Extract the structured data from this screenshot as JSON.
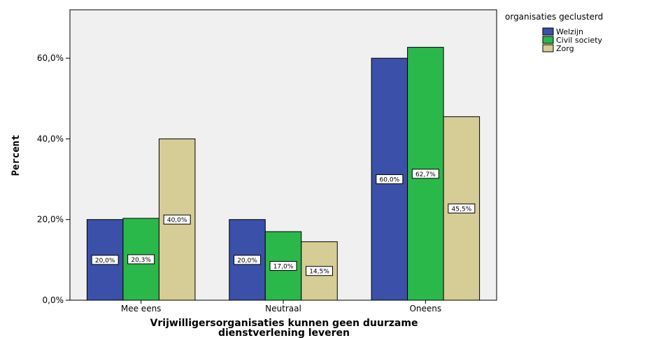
{
  "chart_data": {
    "type": "bar",
    "title": "",
    "xlabel": [
      "Vrijwilligersorganisaties kunnen geen duurzame",
      "dienstverlening leveren"
    ],
    "ylabel": "Percent",
    "categories": [
      "Mee eens",
      "Neutraal",
      "Oneens"
    ],
    "series": [
      {
        "name": "Welzijn",
        "color": "#3b50a8",
        "values": [
          20.0,
          20.0,
          60.0
        ],
        "labels": [
          "20,0%",
          "20,0%",
          "60,0%"
        ]
      },
      {
        "name": "Civil society",
        "color": "#2bb84a",
        "values": [
          20.3,
          17.0,
          62.7
        ],
        "labels": [
          "20,3%",
          "17,0%",
          "62,7%"
        ]
      },
      {
        "name": "Zorg",
        "color": "#d6cc95",
        "values": [
          40.0,
          14.5,
          45.5
        ],
        "labels": [
          "40,0%",
          "14,5%",
          "45,5%"
        ]
      }
    ],
    "ylim": [
      0,
      72
    ],
    "yticks": [
      0,
      20,
      40,
      60
    ],
    "ytick_labels": [
      "0,0%",
      "20,0%",
      "40,0%",
      "60,0%"
    ],
    "legend": {
      "title": "organisaties geclusterd",
      "position": "right"
    },
    "plot_background": "#f0f0f0",
    "grid": false
  }
}
